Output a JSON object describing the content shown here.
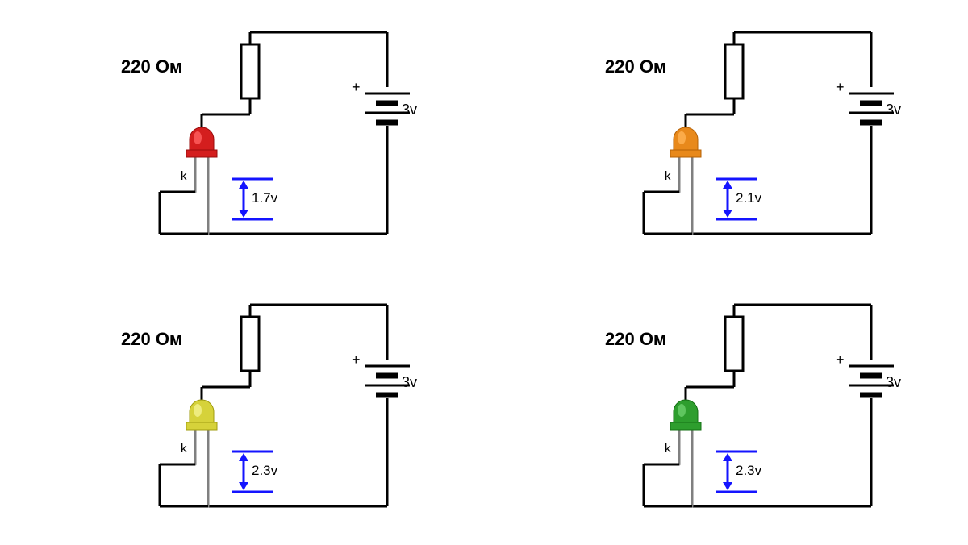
{
  "wire_color": "#000000",
  "wire_width": 3,
  "led_lead_color": "#808080",
  "arrow_color": "#1414ff",
  "vdrop_line_color": "#1414ff",
  "circuits": [
    {
      "id": "red",
      "resistor_label": "220 Ом",
      "battery_label": "3v",
      "plus": "+",
      "k_label": "k",
      "vdrop_label": "1.7v",
      "led_body_color": "#d41e1e",
      "led_highlight_color": "#ff6060",
      "led_dark_color": "#9a0c0c"
    },
    {
      "id": "orange",
      "resistor_label": "220 Ом",
      "battery_label": "3v",
      "plus": "+",
      "k_label": "k",
      "vdrop_label": "2.1v",
      "led_body_color": "#e8891b",
      "led_highlight_color": "#ffb455",
      "led_dark_color": "#b56105"
    },
    {
      "id": "yellow",
      "resistor_label": "220 Ом",
      "battery_label": "3v",
      "plus": "+",
      "k_label": "k",
      "vdrop_label": "2.3v",
      "led_body_color": "#d6d23a",
      "led_highlight_color": "#f4f290",
      "led_dark_color": "#a09c10"
    },
    {
      "id": "green",
      "resistor_label": "220 Ом",
      "battery_label": "3v",
      "plus": "+",
      "k_label": "k",
      "vdrop_label": "2.3v",
      "led_body_color": "#2e9e2e",
      "led_highlight_color": "#6ccf6c",
      "led_dark_color": "#147014"
    }
  ]
}
